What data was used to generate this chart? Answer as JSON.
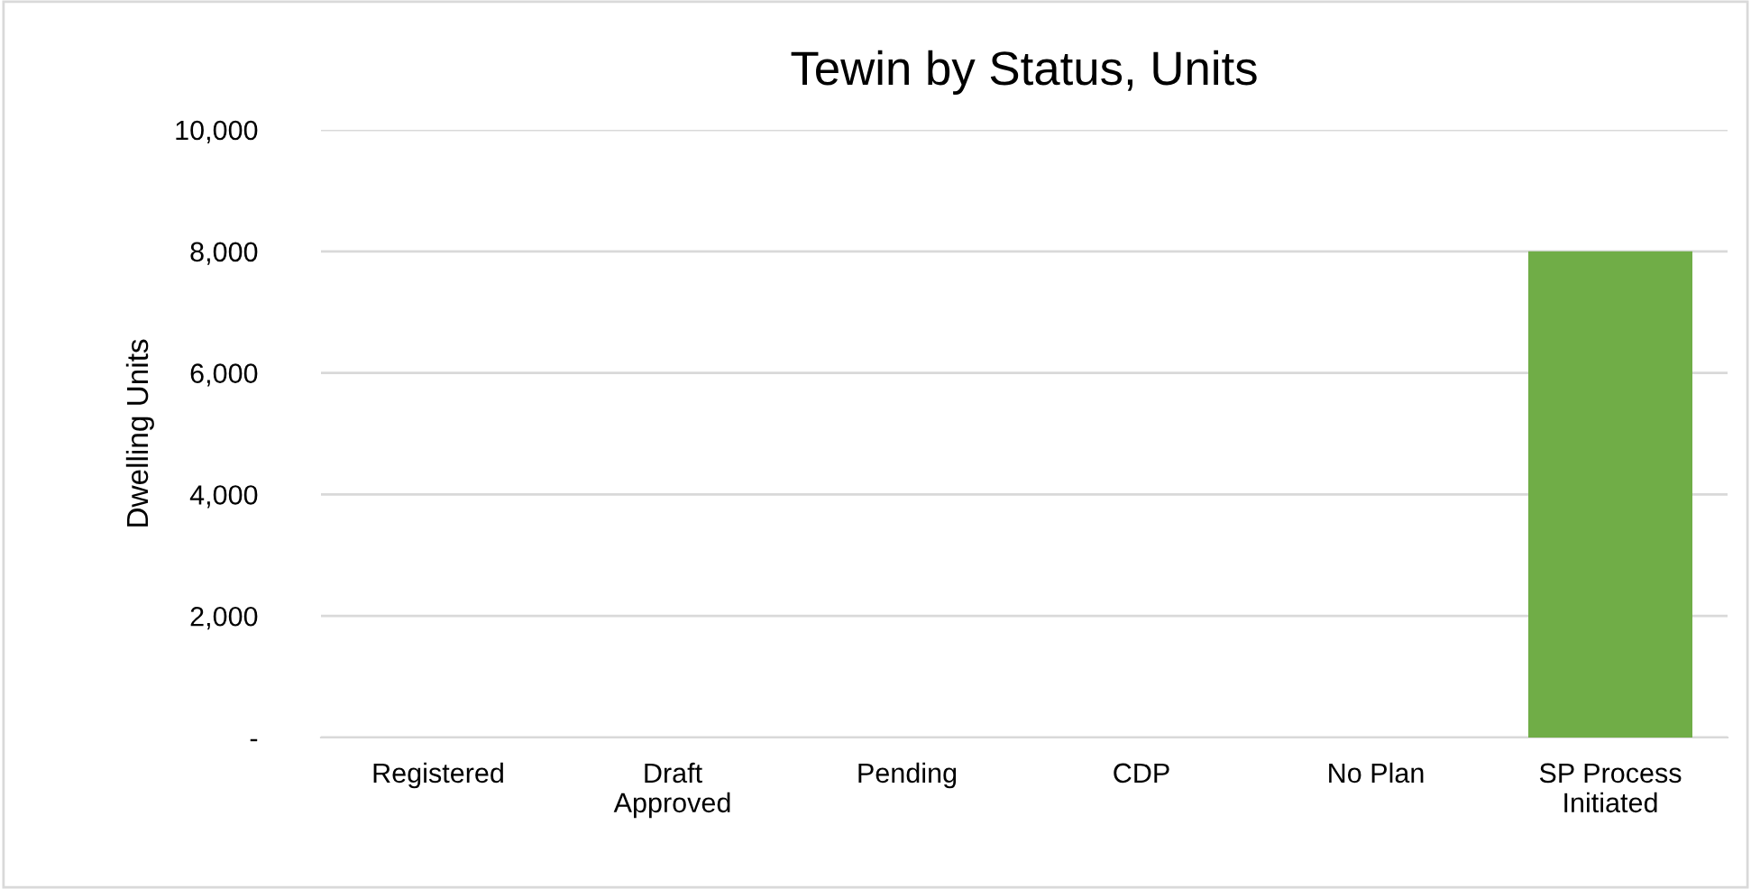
{
  "chart_data": {
    "type": "bar",
    "title": "Tewin by Status, Units",
    "ylabel": "Dwelling Units",
    "categories": [
      "Registered",
      "Draft\nApproved",
      "Pending",
      "CDP",
      "No Plan",
      "SP Process\nInitiated"
    ],
    "values": [
      0,
      0,
      0,
      0,
      0,
      8000
    ],
    "color": "#70ad47",
    "ylim": [
      0,
      10000
    ],
    "yticks": [
      {
        "value": 0,
        "label": "-"
      },
      {
        "value": 2000,
        "label": "2,000"
      },
      {
        "value": 4000,
        "label": "4,000"
      },
      {
        "value": 6000,
        "label": "6,000"
      },
      {
        "value": 8000,
        "label": "8,000"
      },
      {
        "value": 10000,
        "label": "10,000"
      }
    ],
    "grid": "y",
    "legend": false
  }
}
